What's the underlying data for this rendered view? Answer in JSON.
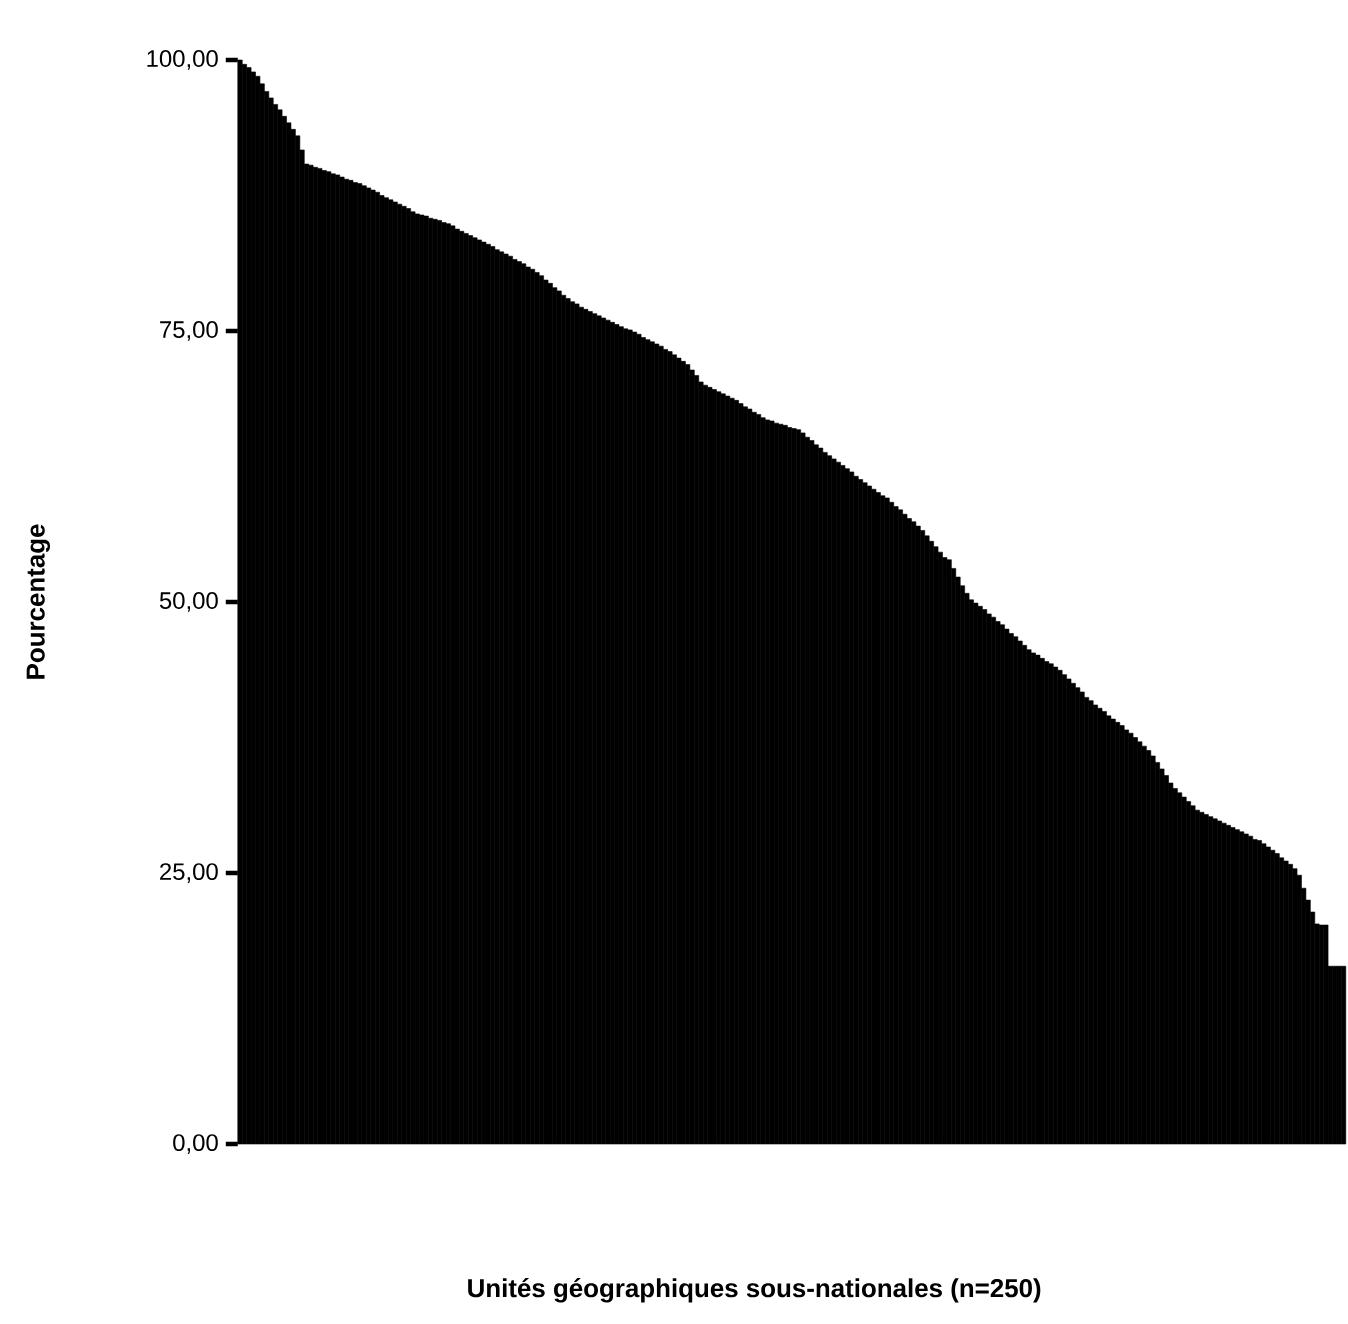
{
  "chart_data": {
    "type": "bar",
    "xlabel": "Unités géographiques sous-nationales (n=250)",
    "ylabel": "Pourcentage",
    "color": "#000000",
    "categories": [
      null,
      null,
      null,
      null,
      null,
      null,
      null,
      null,
      null,
      null,
      null,
      null,
      null,
      null,
      null,
      null,
      null,
      null,
      null,
      null,
      null,
      null,
      null,
      null,
      null,
      null,
      null,
      null,
      null,
      null,
      null,
      null,
      null,
      null,
      null,
      null,
      null,
      null,
      null,
      null,
      null,
      null,
      null,
      null,
      null,
      null,
      null,
      null,
      null,
      null,
      null,
      null,
      null,
      null,
      null,
      null,
      null,
      null,
      null,
      null,
      null,
      null,
      null,
      null,
      null,
      null,
      null,
      null,
      null,
      null,
      null,
      null,
      null,
      null,
      null,
      null,
      null,
      null,
      null,
      null,
      null,
      null,
      null,
      null,
      null,
      null,
      null,
      null,
      null,
      null,
      null,
      null,
      null,
      null,
      null,
      null,
      null,
      null,
      null,
      null,
      null,
      null,
      null,
      null,
      null,
      null,
      null,
      null,
      null,
      null,
      null,
      null,
      null,
      null,
      null,
      null,
      null,
      null,
      null,
      null,
      null,
      null,
      null,
      null,
      null,
      null,
      null,
      null,
      null,
      null,
      null,
      null,
      null,
      null,
      null,
      null,
      null,
      null,
      null,
      null,
      null,
      null,
      null,
      null,
      null,
      null,
      null,
      null,
      null,
      null,
      null,
      null,
      null,
      null,
      null,
      null,
      null,
      null,
      null,
      null,
      null,
      null,
      null,
      null,
      null,
      null,
      null,
      null,
      null,
      null,
      null,
      null,
      null,
      null,
      null,
      null,
      null,
      null,
      null,
      null,
      null,
      null,
      null,
      null,
      null,
      null,
      null,
      null,
      null,
      null,
      null,
      null,
      null,
      null,
      null,
      null,
      null,
      null,
      null,
      null,
      null,
      null,
      null,
      null,
      null,
      null,
      null,
      null,
      null,
      null,
      null,
      null,
      null,
      null,
      null,
      null,
      null,
      null,
      null,
      null,
      null,
      null,
      null,
      null,
      null,
      null,
      null,
      null,
      null,
      null,
      null,
      null,
      null,
      null,
      null,
      null,
      null,
      null,
      null,
      null,
      null,
      null,
      null,
      null,
      null,
      null,
      null,
      null,
      null,
      null
    ],
    "values": [
      100.0,
      99.6,
      99.3,
      98.9,
      98.5,
      97.8,
      97.1,
      96.5,
      95.9,
      95.4,
      94.8,
      94.2,
      93.6,
      93.0,
      91.7,
      90.4,
      90.3,
      90.1,
      90.0,
      89.8,
      89.7,
      89.5,
      89.4,
      89.2,
      89.0,
      88.9,
      88.7,
      88.6,
      88.4,
      88.2,
      88.0,
      87.8,
      87.5,
      87.3,
      87.1,
      86.9,
      86.7,
      86.5,
      86.3,
      86.0,
      85.8,
      85.7,
      85.6,
      85.4,
      85.3,
      85.2,
      85.0,
      84.9,
      84.7,
      84.4,
      84.2,
      84.0,
      83.8,
      83.6,
      83.4,
      83.2,
      83.0,
      82.8,
      82.5,
      82.3,
      82.1,
      81.9,
      81.6,
      81.4,
      81.2,
      80.9,
      80.7,
      80.4,
      80.1,
      79.7,
      79.4,
      79.0,
      78.7,
      78.3,
      78.0,
      77.7,
      77.5,
      77.2,
      77.0,
      76.8,
      76.6,
      76.4,
      76.2,
      76.0,
      75.8,
      75.6,
      75.4,
      75.2,
      75.1,
      74.9,
      74.7,
      74.4,
      74.2,
      74.0,
      73.8,
      73.6,
      73.3,
      73.1,
      72.8,
      72.5,
      72.2,
      71.9,
      71.4,
      70.9,
      70.3,
      70.0,
      69.8,
      69.6,
      69.4,
      69.2,
      69.0,
      68.8,
      68.6,
      68.3,
      68.0,
      67.8,
      67.5,
      67.3,
      67.0,
      66.8,
      66.7,
      66.5,
      66.4,
      66.3,
      66.1,
      66.0,
      65.9,
      65.6,
      65.2,
      64.9,
      64.5,
      64.2,
      63.8,
      63.5,
      63.2,
      62.9,
      62.6,
      62.3,
      62.0,
      61.6,
      61.3,
      61.0,
      60.7,
      60.4,
      60.1,
      59.8,
      59.6,
      59.2,
      58.8,
      58.5,
      58.1,
      57.7,
      57.4,
      57.0,
      56.6,
      56.1,
      55.6,
      55.1,
      54.6,
      54.1,
      53.9,
      53.1,
      52.3,
      51.5,
      50.8,
      50.2,
      49.9,
      49.6,
      49.3,
      48.9,
      48.6,
      48.2,
      47.9,
      47.5,
      47.1,
      46.8,
      46.4,
      46.0,
      45.6,
      45.3,
      45.1,
      44.8,
      44.5,
      44.3,
      44.0,
      43.7,
      43.3,
      42.9,
      42.5,
      42.1,
      41.7,
      41.2,
      40.9,
      40.5,
      40.2,
      39.9,
      39.5,
      39.2,
      38.9,
      38.6,
      38.2,
      37.9,
      37.5,
      37.1,
      36.7,
      36.3,
      35.8,
      35.2,
      34.6,
      34.0,
      33.3,
      32.8,
      32.4,
      32.0,
      31.6,
      31.2,
      30.8,
      30.6,
      30.4,
      30.2,
      30.0,
      29.8,
      29.6,
      29.4,
      29.2,
      29.0,
      28.8,
      28.6,
      28.4,
      28.1,
      28.0,
      27.7,
      27.4,
      27.1,
      26.8,
      26.4,
      26.1,
      25.8,
      25.4,
      24.8,
      23.6,
      22.5,
      21.4,
      20.3,
      20.2,
      20.2,
      16.4,
      16.4,
      16.4,
      16.4
    ],
    "ylim": [
      0,
      100
    ],
    "yticks": [
      {
        "value": 0,
        "label": "0,00"
      },
      {
        "value": 25,
        "label": "25,00"
      },
      {
        "value": 50,
        "label": "50,00"
      },
      {
        "value": 75,
        "label": "75,00"
      },
      {
        "value": 100,
        "label": "100,00"
      }
    ]
  }
}
